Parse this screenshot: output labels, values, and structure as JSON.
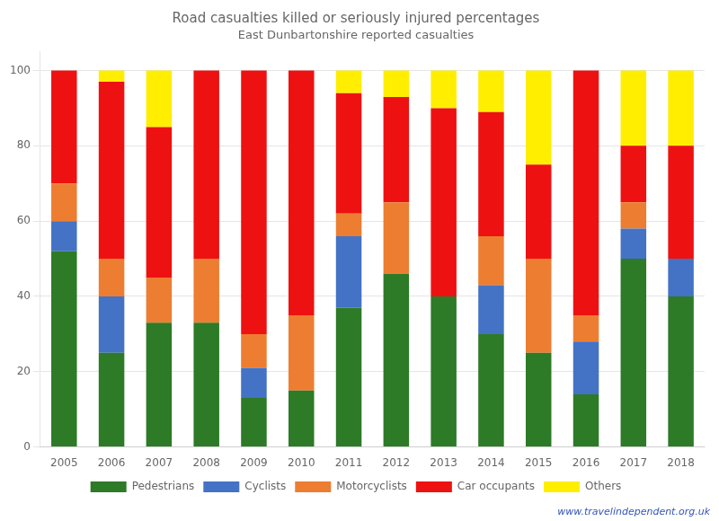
{
  "chart_data": {
    "type": "bar",
    "stacked": true,
    "title": "Road casualties killed or seriously injured percentages",
    "subtitle": "East Dunbartonshire reported casualties",
    "categories": [
      "2005",
      "2006",
      "2007",
      "2008",
      "2009",
      "2010",
      "2011",
      "2012",
      "2013",
      "2014",
      "2015",
      "2016",
      "2017",
      "2018"
    ],
    "series": [
      {
        "name": "Pedestrians",
        "color": "#2d7a27",
        "values": [
          52,
          25,
          33,
          33,
          13,
          15,
          37,
          46,
          40,
          30,
          25,
          14,
          50,
          40
        ]
      },
      {
        "name": "Cyclists",
        "color": "#4472c4",
        "values": [
          8,
          15,
          0,
          0,
          8,
          0,
          19,
          0,
          0,
          13,
          0,
          14,
          8,
          10
        ]
      },
      {
        "name": "Motorcyclists",
        "color": "#ed7d31",
        "values": [
          10,
          10,
          12,
          17,
          9,
          20,
          6,
          19,
          0,
          13,
          25,
          7,
          7,
          0
        ]
      },
      {
        "name": "Car occupants",
        "color": "#ee1111",
        "values": [
          30,
          47,
          40,
          50,
          70,
          65,
          32,
          28,
          50,
          33,
          25,
          65,
          15,
          30
        ]
      },
      {
        "name": "Others",
        "color": "#ffee00",
        "values": [
          0,
          3,
          15,
          0,
          0,
          0,
          6,
          7,
          10,
          11,
          25,
          0,
          20,
          20
        ]
      }
    ],
    "ylim": [
      0,
      105
    ],
    "yticks": [
      0,
      20,
      40,
      60,
      80,
      100
    ],
    "grid": true,
    "legend": "bottom",
    "annotations": [
      "www.travelindependent.org.uk"
    ]
  }
}
